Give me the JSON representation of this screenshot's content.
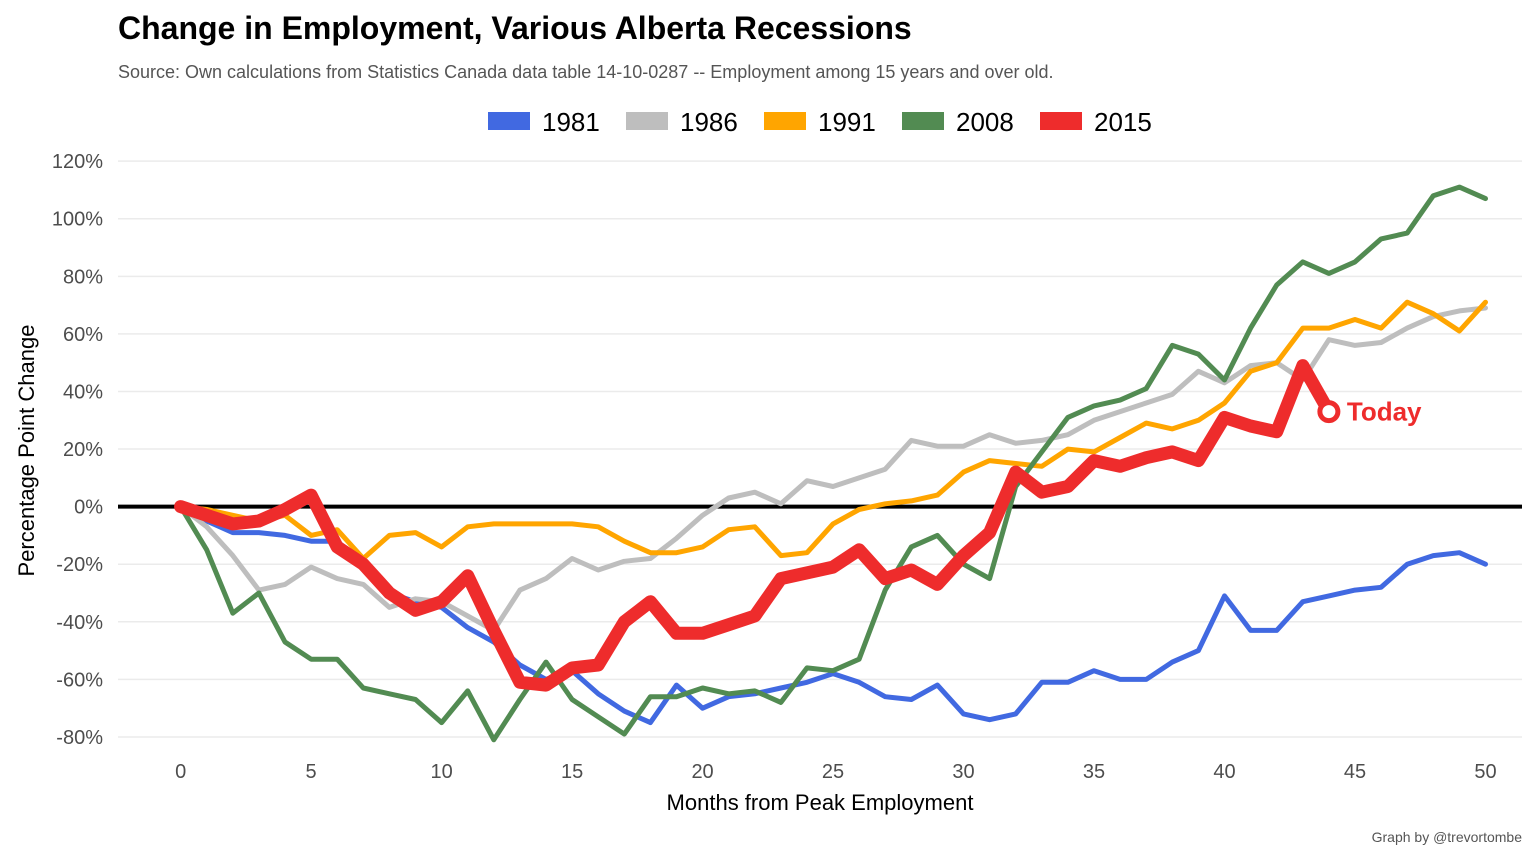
{
  "title": "Change in Employment, Various Alberta Recessions",
  "subtitle": "Source: Own calculations from Statistics Canada data table 14-10-0287 -- Employment among 15 years and over old.",
  "credit": "Graph by @trevortombe",
  "chart_data": {
    "type": "line",
    "xlabel": "Months from Peak Employment",
    "ylabel": "Percentage Point Change",
    "xlim": [
      -2.4,
      51.4
    ],
    "ylim": [
      -0.88,
      1.27
    ],
    "x_ticks": [
      0,
      5,
      10,
      15,
      20,
      25,
      30,
      35,
      40,
      45,
      50
    ],
    "x_tick_labels": [
      "0",
      "5",
      "10",
      "15",
      "20",
      "25",
      "30",
      "35",
      "40",
      "45",
      "50"
    ],
    "y_ticks": [
      -0.8,
      -0.6,
      -0.4,
      -0.2,
      0,
      0.2,
      0.4,
      0.6,
      0.8,
      1.0,
      1.2
    ],
    "y_tick_labels": [
      "-80%",
      "-60%",
      "-40%",
      "-20%",
      "0%",
      "20%",
      "40%",
      "60%",
      "80%",
      "100%",
      "120%"
    ],
    "grid": true,
    "legend_position": "top",
    "zero_line": true,
    "series": [
      {
        "name": "1981",
        "color": "#4169E1",
        "width": 5,
        "values": [
          0,
          -0.05,
          -0.09,
          -0.09,
          -0.1,
          -0.12,
          -0.12,
          -0.2,
          -0.3,
          -0.33,
          -0.35,
          -0.42,
          -0.47,
          -0.55,
          -0.6,
          -0.57,
          -0.65,
          -0.71,
          -0.75,
          -0.62,
          -0.7,
          -0.66,
          -0.65,
          -0.63,
          -0.61,
          -0.58,
          -0.61,
          -0.66,
          -0.67,
          -0.62,
          -0.72,
          -0.74,
          -0.72,
          -0.61,
          -0.61,
          -0.57,
          -0.6,
          -0.6,
          -0.54,
          -0.5,
          -0.31,
          -0.43,
          -0.43,
          -0.33,
          -0.31,
          -0.29,
          -0.28,
          -0.2,
          -0.17,
          -0.16,
          -0.2
        ]
      },
      {
        "name": "1986",
        "color": "#BEBEBE",
        "width": 5,
        "values": [
          0,
          -0.07,
          -0.17,
          -0.29,
          -0.27,
          -0.21,
          -0.25,
          -0.27,
          -0.35,
          -0.32,
          -0.33,
          -0.38,
          -0.43,
          -0.29,
          -0.25,
          -0.18,
          -0.22,
          -0.19,
          -0.18,
          -0.11,
          -0.03,
          0.03,
          0.05,
          0.01,
          0.09,
          0.07,
          0.1,
          0.13,
          0.23,
          0.21,
          0.21,
          0.25,
          0.22,
          0.23,
          0.25,
          0.3,
          0.33,
          0.36,
          0.39,
          0.47,
          0.43,
          0.49,
          0.5,
          0.44,
          0.58,
          0.56,
          0.57,
          0.62,
          0.66,
          0.68,
          0.69
        ]
      },
      {
        "name": "1991",
        "color": "#FFA500",
        "width": 5,
        "values": [
          0,
          -0.01,
          -0.03,
          -0.05,
          -0.03,
          -0.1,
          -0.08,
          -0.18,
          -0.1,
          -0.09,
          -0.14,
          -0.07,
          -0.06,
          -0.06,
          -0.06,
          -0.06,
          -0.07,
          -0.12,
          -0.16,
          -0.16,
          -0.14,
          -0.08,
          -0.07,
          -0.17,
          -0.16,
          -0.06,
          -0.01,
          0.01,
          0.02,
          0.04,
          0.12,
          0.16,
          0.15,
          0.14,
          0.2,
          0.19,
          0.24,
          0.29,
          0.27,
          0.3,
          0.36,
          0.47,
          0.5,
          0.62,
          0.62,
          0.65,
          0.62,
          0.71,
          0.67,
          0.61,
          0.71
        ]
      },
      {
        "name": "2008",
        "color": "#528B52",
        "width": 5,
        "values": [
          0,
          -0.15,
          -0.37,
          -0.3,
          -0.47,
          -0.53,
          -0.53,
          -0.63,
          -0.65,
          -0.67,
          -0.75,
          -0.64,
          -0.81,
          -0.67,
          -0.54,
          -0.67,
          -0.73,
          -0.79,
          -0.66,
          -0.66,
          -0.63,
          -0.65,
          -0.64,
          -0.68,
          -0.56,
          -0.57,
          -0.53,
          -0.29,
          -0.14,
          -0.1,
          -0.2,
          -0.25,
          0.07,
          0.19,
          0.31,
          0.35,
          0.37,
          0.41,
          0.56,
          0.53,
          0.44,
          0.62,
          0.77,
          0.85,
          0.81,
          0.85,
          0.93,
          0.95,
          1.08,
          1.11,
          1.07
        ]
      },
      {
        "name": "2015",
        "color": "#EE2C2C",
        "width": 13,
        "values": [
          0,
          -0.03,
          -0.06,
          -0.05,
          -0.01,
          0.04,
          -0.14,
          -0.2,
          -0.3,
          -0.36,
          -0.33,
          -0.24,
          -0.43,
          -0.61,
          -0.62,
          -0.56,
          -0.55,
          -0.4,
          -0.33,
          -0.44,
          -0.44,
          -0.41,
          -0.38,
          -0.25,
          -0.23,
          -0.21,
          -0.15,
          -0.25,
          -0.22,
          -0.27,
          -0.17,
          -0.09,
          0.12,
          0.05,
          0.07,
          0.16,
          0.14,
          0.17,
          0.19,
          0.16,
          0.31,
          0.28,
          0.26,
          0.49,
          0.33
        ]
      }
    ],
    "annotation": {
      "label": "Today",
      "x": 44,
      "y": 0.33,
      "color": "#EE2C2C"
    }
  }
}
